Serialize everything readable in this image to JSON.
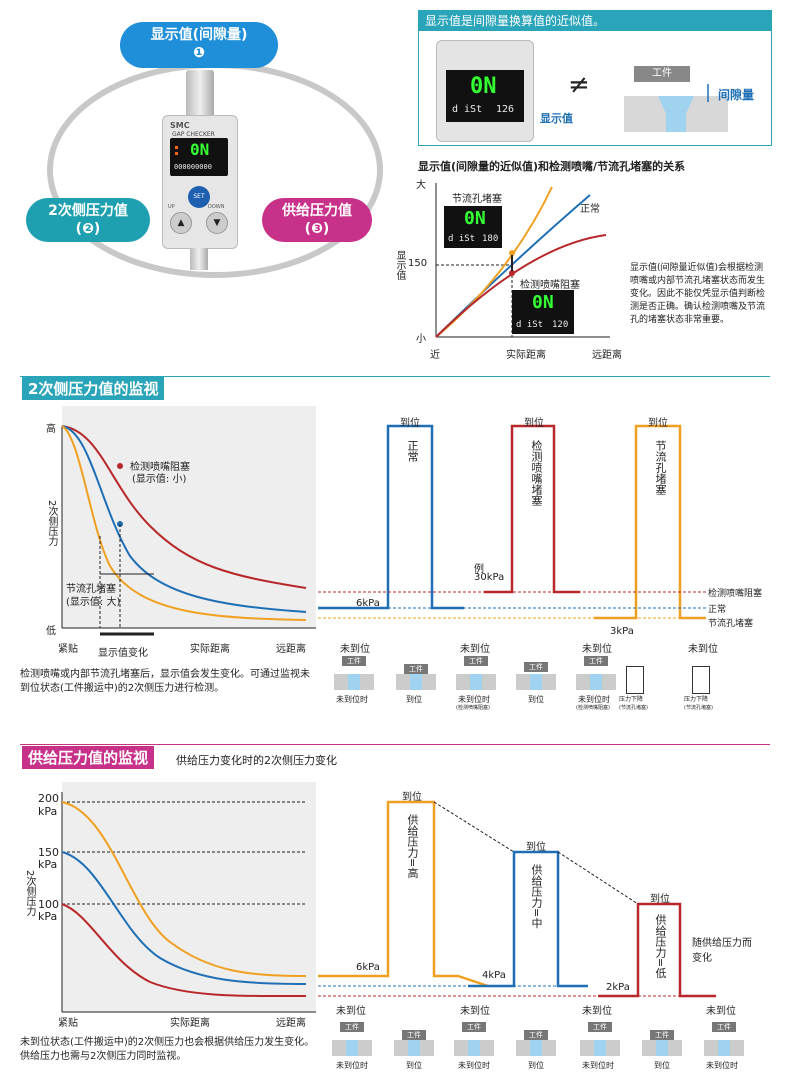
{
  "top": {
    "bubble1": {
      "label": "显示值(间隙量)",
      "num": "❶"
    },
    "bubble2": {
      "label": "2次侧压力值",
      "num": "(❷)"
    },
    "bubble3": {
      "label": "供给压力值",
      "num": "(❸)"
    },
    "device": {
      "brand": "SMC",
      "name": "GAP CHECKER",
      "display": "0N",
      "sub": "000000000",
      "set": "SET",
      "up": "UP",
      "down": "DOWN"
    }
  },
  "box_top": {
    "title": "显示值是间隙量换算值的近似值。",
    "neq": "≠",
    "work": "工件",
    "gap": "间隙量",
    "display_label": "显示值",
    "display_main": "0N",
    "display_sub_label": "d iSt",
    "display_sub_val": "126"
  },
  "relation": {
    "title": "显示值(间隙量的近似值)和检测喷嘴/节流孔堵塞的关系",
    "y_top": "大",
    "y_bottom": "小",
    "y_label": "显示值",
    "y_mark": "150",
    "x_left": "近",
    "x_mid": "实际距离",
    "x_right": "远距离",
    "series_normal": "正常",
    "series_orifice": "节流孔堵塞",
    "series_nozzle": "检测喷嘴阻塞",
    "disp1_main": "0N",
    "disp1_sub": "d iSt",
    "disp1_val": "180",
    "disp2_main": "0N",
    "disp2_sub": "d iSt",
    "disp2_val": "120",
    "note": "显示值(间隙量近似值)会根据检测喷嘴或内部节流孔堵塞状态而发生变化。因此不能仅凭显示值判断检测是否正确。确认检测喷嘴及节流孔的堵塞状态非常重要。"
  },
  "sec2": {
    "title": "2次侧压力值的监视",
    "y_high": "高",
    "y_low": "低",
    "y_label": "2次侧压力",
    "x_left": "紧贴",
    "x_mid": "实际距离",
    "x_right": "远距离",
    "nozzle_label": "检测喷嘴阻塞",
    "nozzle_sub": "(显示值: 小)",
    "orifice_label": "节流孔堵塞",
    "orifice_sub": "(显示值: 大)",
    "change_label": "显示值变化",
    "note": "检测喷嘴或内部节流孔堵塞后，显示值会发生变化。可通过监视未到位状态(工件搬运中)的2次侧压力进行检测。",
    "arrive": "到位",
    "not_arrive": "未到位",
    "normal": "正常",
    "nozzle_block": "检测喷嘴堵塞",
    "orifice_block": "节流孔堵塞",
    "v6": "6kPa",
    "example": "例",
    "v30": "30kPa",
    "v3": "3kPa",
    "legend_nozzle": "检测喷嘴阻塞",
    "legend_normal": "正常",
    "legend_orifice": "节流孔堵塞",
    "work": "工件",
    "cap_not": "未到位时",
    "cap_arr": "到位",
    "cap_not_nozzle": "未到位时",
    "cap_not_nozzle_sub": "(检测喷嘴阻塞)",
    "cap_not_orifice": "未到位时",
    "cap_not_orifice_sub": "(检测喷嘴阻塞)",
    "cap_drop": "压力下降",
    "cap_drop_sub": "(节流孔堵塞)",
    "cap_orifice": "压力下降",
    "cap_orifice_sub": "(节流孔堵塞)"
  },
  "sec3": {
    "title": "供给压力值的监视",
    "subtitle": "供给压力变化时的2次侧压力变化",
    "y200": "200",
    "y150": "150",
    "y100": "100",
    "unit": "kPa",
    "y_label": "2次侧压力",
    "x_left": "紧贴",
    "x_mid": "实际距离",
    "x_right": "远距离",
    "note": "未到位状态(工件搬运中)的2次侧压力也会根据供给压力发生变化。供给压力也需与2次侧压力同时监视。",
    "arrive": "到位",
    "not_arrive": "未到位",
    "high": "供给压力=高",
    "mid": "供给压力=中",
    "low": "供给压力=低",
    "v6": "6kPa",
    "v4": "4kPa",
    "v2": "2kPa",
    "follow": "随供给压力而变化",
    "work": "工件",
    "cap_not": "未到位时",
    "cap_arr": "到位"
  },
  "colors": {
    "teal": "#2aa4b8",
    "pink": "#c8318a",
    "blue": "#1f6fb5",
    "orange": "#f0a020",
    "red": "#b8282a"
  }
}
